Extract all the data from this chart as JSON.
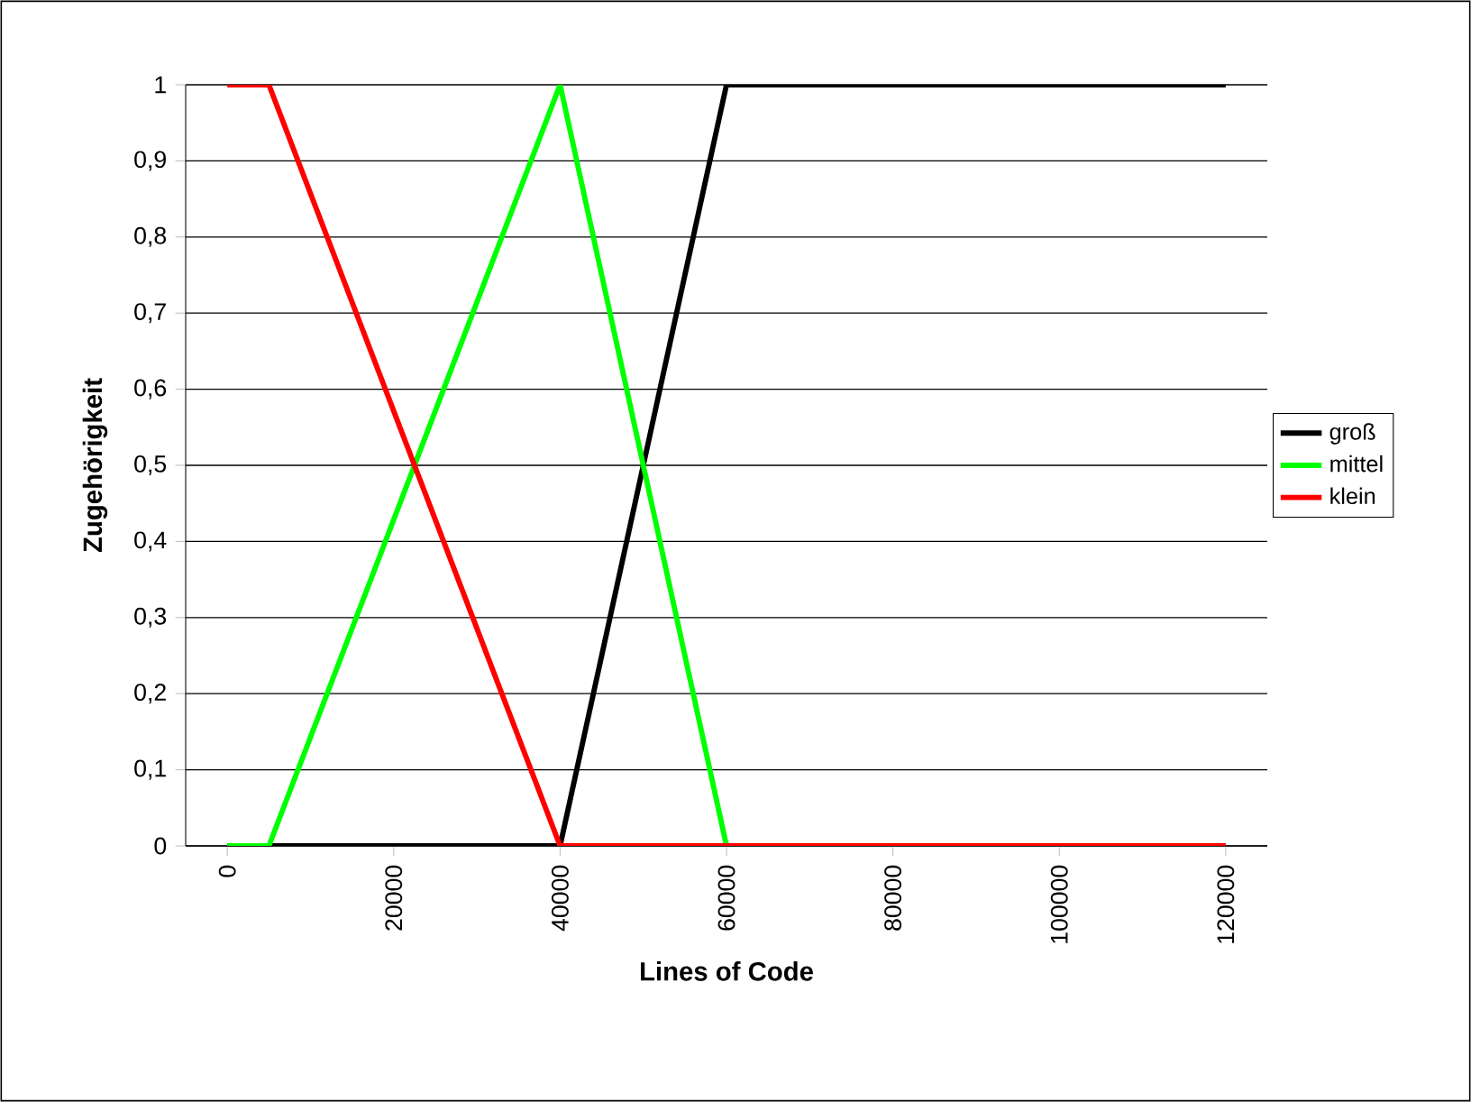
{
  "chart_data": {
    "type": "line",
    "xlabel": "Lines of Code",
    "ylabel": "Zugehörigkeit",
    "x": [
      0,
      5000,
      40000,
      60000,
      120000
    ],
    "series": [
      {
        "name": "groß",
        "color": "#000000",
        "values": [
          0,
          0,
          0,
          1,
          1
        ]
      },
      {
        "name": "mittel",
        "color": "#00ff00",
        "values": [
          0,
          0,
          1,
          0,
          0
        ]
      },
      {
        "name": "klein",
        "color": "#ff0000",
        "values": [
          1,
          1,
          0,
          0,
          0
        ]
      }
    ],
    "xlim": [
      -5000,
      125000
    ],
    "xticks": [
      0,
      20000,
      40000,
      60000,
      80000,
      100000,
      120000
    ],
    "ylim": [
      0,
      1
    ],
    "yticks": [
      0,
      {
        "value": 0.1,
        "label": "0,1"
      },
      {
        "value": 0.2,
        "label": "0,2"
      },
      {
        "value": 0.3,
        "label": "0,3"
      },
      {
        "value": 0.4,
        "label": "0,4"
      },
      {
        "value": 0.5,
        "label": "0,5"
      },
      {
        "value": 0.6,
        "label": "0,6"
      },
      {
        "value": 0.7,
        "label": "0,7"
      },
      {
        "value": 0.8,
        "label": "0,8"
      },
      {
        "value": 0.9,
        "label": "0,9"
      },
      1
    ],
    "grid": "y",
    "legend": "right",
    "marker": "none",
    "line_style": "solid"
  }
}
